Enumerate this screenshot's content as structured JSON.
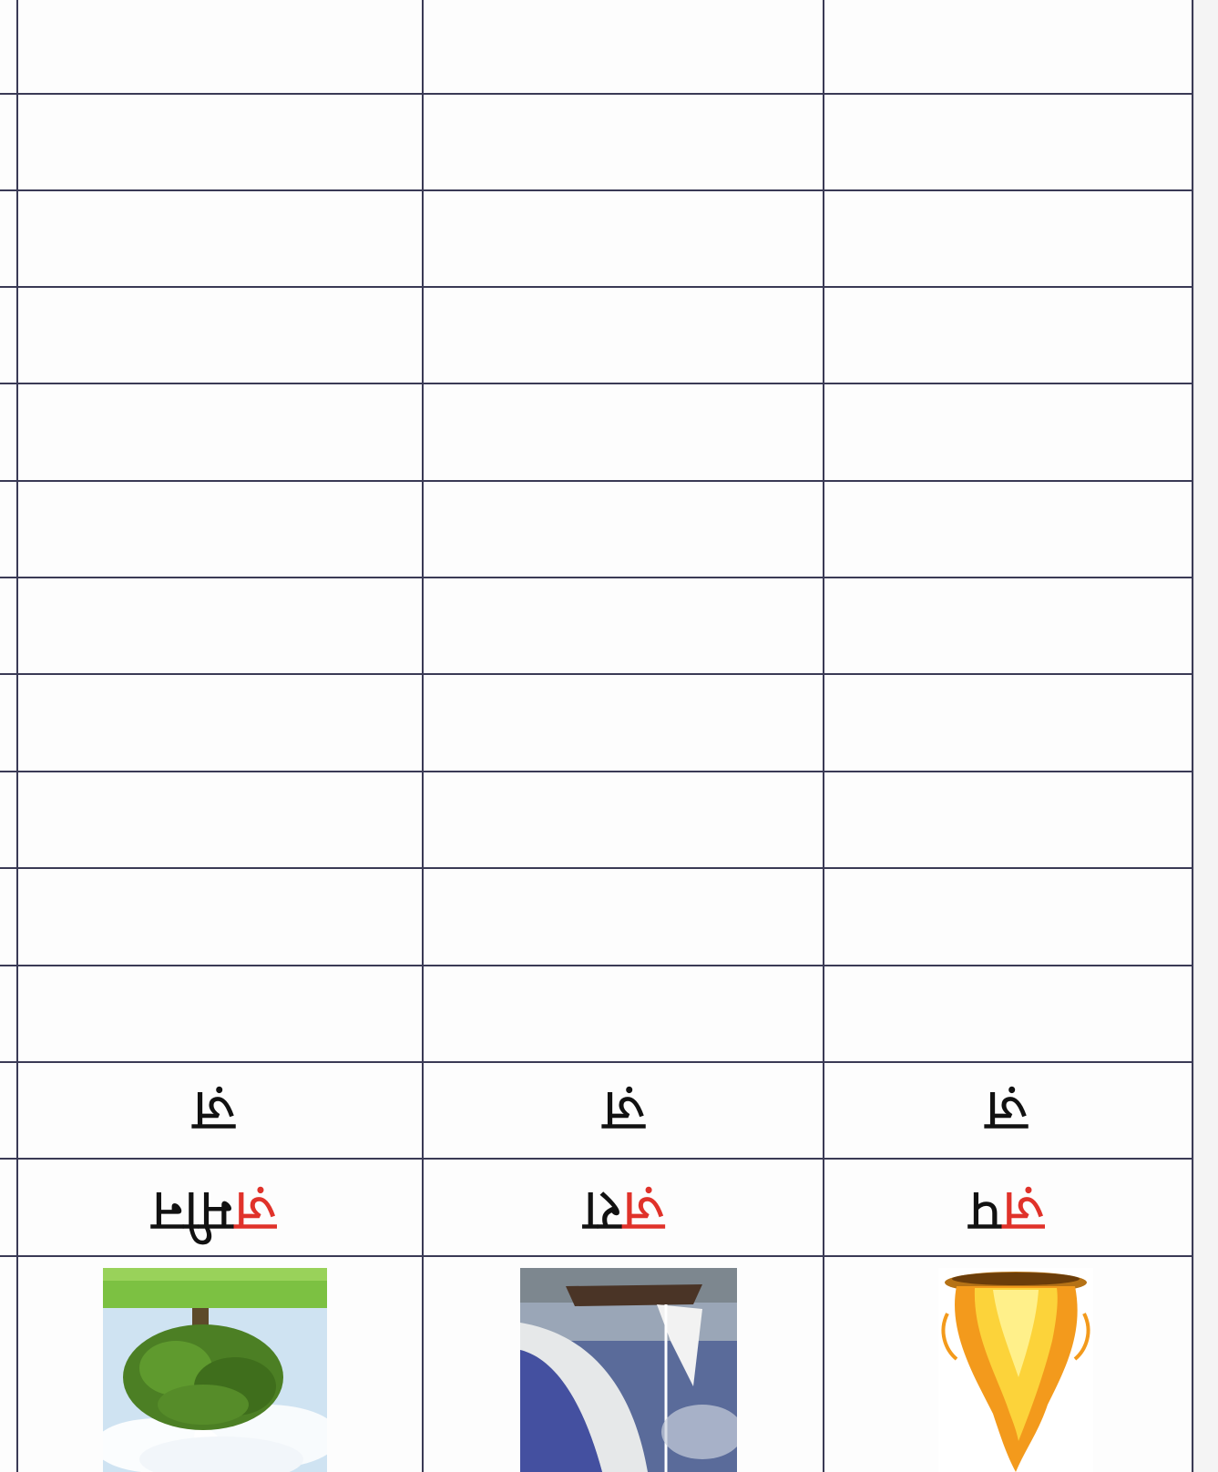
{
  "worksheet": {
    "columns": [
      {
        "picture": "tree-picture",
        "word": {
          "prefix_red": "ज़",
          "rest": "मीन"
        },
        "letter": "ज़"
      },
      {
        "picture": "sail-picture",
        "word": {
          "prefix_red": "ज़",
          "rest": "रा"
        },
        "letter": "ज़"
      },
      {
        "picture": "fire-picture",
        "word": {
          "prefix_red": "ज़",
          "rest": "प"
        },
        "letter": "ज़"
      }
    ],
    "empty_rows": 11,
    "colors": {
      "grid": "#3a3a55",
      "accent_red": "#e0322a",
      "ink": "#111111"
    }
  }
}
